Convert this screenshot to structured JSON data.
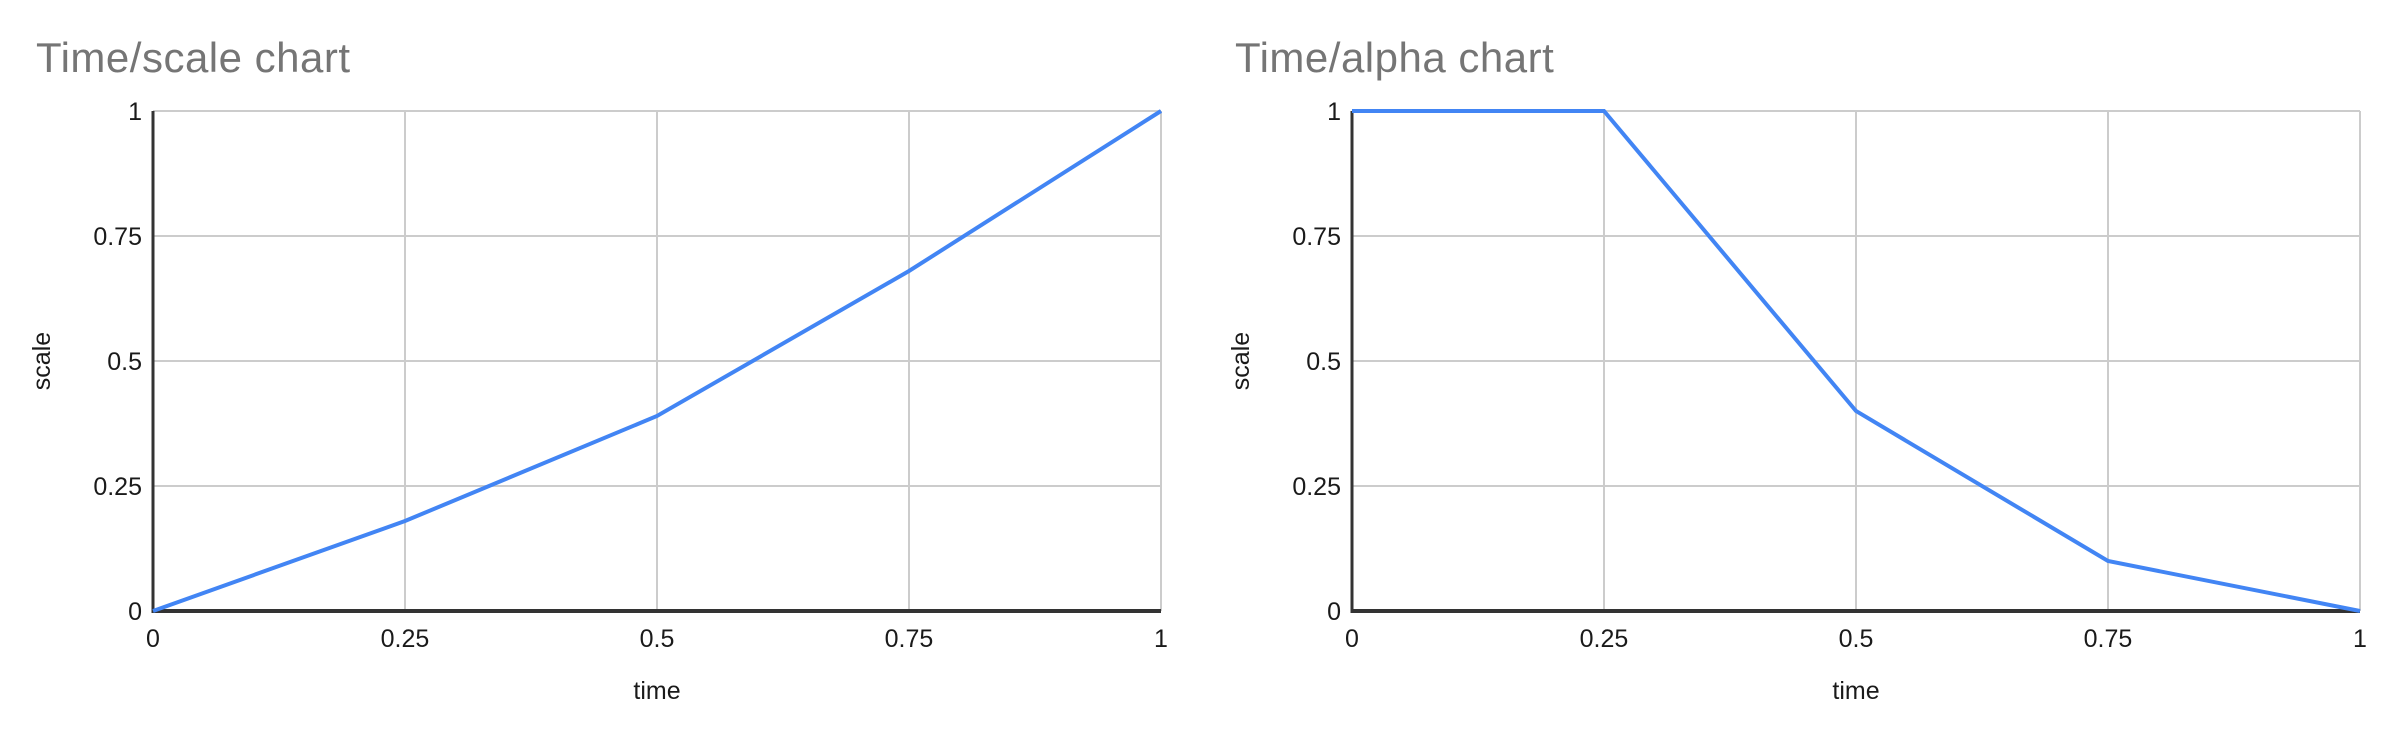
{
  "page": {
    "background": "#ffffff"
  },
  "colors": {
    "series_line": "#4285f4",
    "gridline": "#cccccc",
    "axis_line": "#333333",
    "title_text": "#757575",
    "label_text": "#1a1a1a"
  },
  "chart_data": [
    {
      "type": "line",
      "title": "Time/scale chart",
      "xlabel": "time",
      "ylabel": "scale",
      "x": [
        0,
        0.25,
        0.5,
        0.75,
        1
      ],
      "values": [
        0,
        0.18,
        0.39,
        0.68,
        1
      ],
      "xticks": [
        "0",
        "0.25",
        "0.5",
        "0.75",
        "1"
      ],
      "yticks": [
        "0",
        "0.25",
        "0.5",
        "0.75",
        "1"
      ],
      "xlim": [
        0,
        1
      ],
      "ylim": [
        0,
        1
      ],
      "grid": true,
      "legend": "none"
    },
    {
      "type": "line",
      "title": "Time/alpha chart",
      "xlabel": "time",
      "ylabel": "scale",
      "x": [
        0,
        0.25,
        0.5,
        0.75,
        1
      ],
      "values": [
        1,
        1,
        0.4,
        0.1,
        0
      ],
      "xticks": [
        "0",
        "0.25",
        "0.5",
        "0.75",
        "1"
      ],
      "yticks": [
        "0",
        "0.25",
        "0.5",
        "0.75",
        "1"
      ],
      "xlim": [
        0,
        1
      ],
      "ylim": [
        0,
        1
      ],
      "grid": true,
      "legend": "none"
    }
  ]
}
